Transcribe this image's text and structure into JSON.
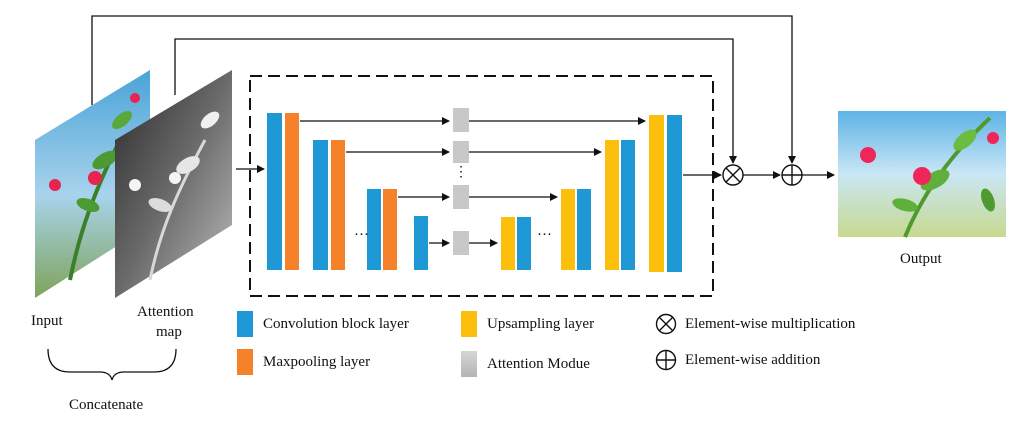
{
  "colors": {
    "conv": "#1f98d6",
    "maxpool": "#f5822a",
    "upsample": "#fbbf0c",
    "attention": "#c8c8c8",
    "line": "#111111"
  },
  "labels": {
    "input": "Input",
    "attention_map_line1": "Attention",
    "attention_map_line2": "map",
    "concatenate": "Concatenate",
    "output": "Output",
    "ellipsis": "···"
  },
  "legend": {
    "conv": "Convolution block layer",
    "maxpool": "Maxpooling layer",
    "upsample": "Upsampling layer",
    "attention": "Attention Modue",
    "multiplication": "Element-wise multiplication",
    "addition": "Element-wise addition"
  },
  "icons": {
    "multiplication": "circled-times-icon",
    "addition": "circled-plus-icon"
  }
}
